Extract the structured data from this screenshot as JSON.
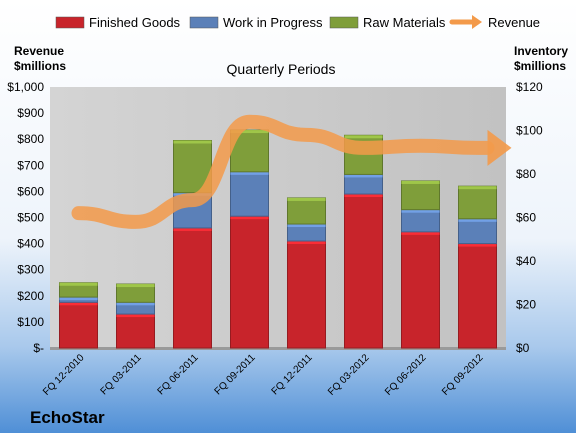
{
  "chart_data": {
    "type": "bar",
    "stacked": true,
    "subtitle": "Quarterly Periods",
    "categories": [
      "FQ 12-2010",
      "FQ 03-2011",
      "FQ 06-2011",
      "FQ 09-2011",
      "FQ 12-2011",
      "FQ 03-2012",
      "FQ 06-2012",
      "FQ 09-2012"
    ],
    "series": [
      {
        "name": "Finished Goods",
        "color": "#c8242b",
        "values": [
          175,
          130,
          460,
          505,
          410,
          590,
          445,
          400
        ]
      },
      {
        "name": "Work in Progress",
        "color": "#5b80b8",
        "values": [
          20,
          45,
          135,
          170,
          65,
          75,
          85,
          95
        ]
      },
      {
        "name": "Raw Materials",
        "color": "#7f9e3a",
        "values": [
          55,
          70,
          200,
          160,
          100,
          150,
          110,
          125
        ]
      }
    ],
    "line_series": {
      "name": "Revenue",
      "color": "#f39a4a",
      "axis": "right",
      "values": [
        62,
        58,
        68,
        104,
        98,
        92,
        93,
        92
      ]
    },
    "left_axis": {
      "label_line1": "Revenue",
      "label_line2": "$millions",
      "range": [
        0,
        1000
      ],
      "ticks": [
        "$-",
        "$100",
        "$200",
        "$300",
        "$400",
        "$500",
        "$600",
        "$700",
        "$800",
        "$900",
        "$1,000"
      ]
    },
    "right_axis": {
      "label_line1": "Inventory",
      "label_line2": "$millions",
      "range": [
        0,
        120
      ],
      "ticks": [
        "$0",
        "$20",
        "$40",
        "$60",
        "$80",
        "$100",
        "$120"
      ]
    },
    "legend_position": "top",
    "grid": false
  },
  "brand": "EchoStar"
}
